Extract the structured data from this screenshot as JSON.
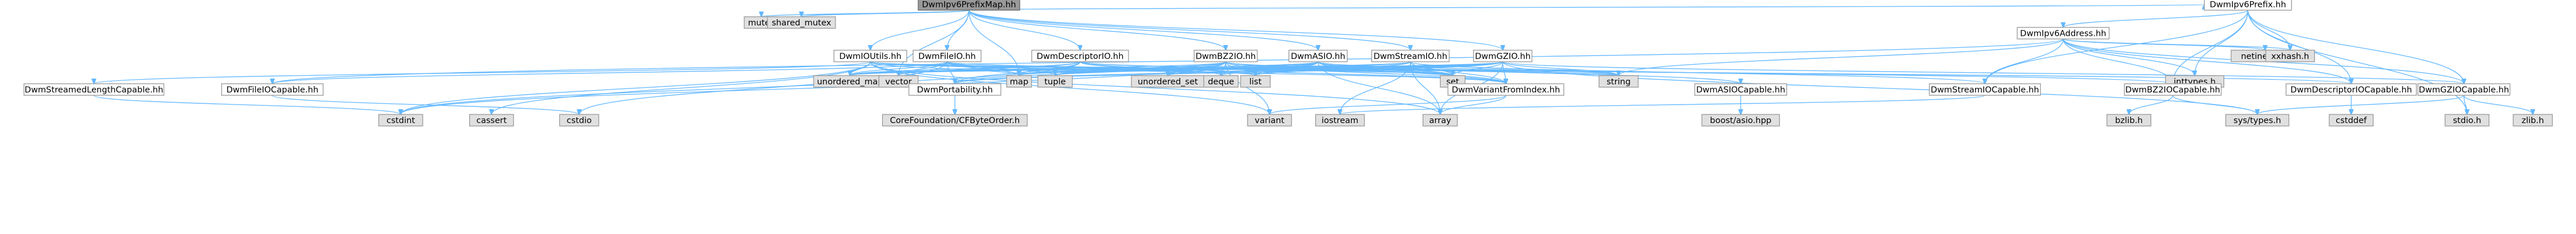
{
  "diagram": {
    "type": "include-dependency-graph",
    "colors": {
      "root_fill": "#999999",
      "local_fill": "#ffffff",
      "system_fill": "#e0e0e0",
      "border": "#999999",
      "edge": "#63b8ff"
    },
    "nodes": [
      {
        "id": "root",
        "label": "DwmIpv6PrefixMap.hh",
        "kind": "root"
      },
      {
        "id": "mutex",
        "label": "mutex",
        "kind": "system"
      },
      {
        "id": "shared_mutex",
        "label": "shared_mutex",
        "kind": "system"
      },
      {
        "id": "ipv6prefix",
        "label": "DwmIpv6Prefix.hh",
        "kind": "local"
      },
      {
        "id": "ipv6address",
        "label": "DwmIpv6Address.hh",
        "kind": "local"
      },
      {
        "id": "netinet",
        "label": "netinet/in.h",
        "kind": "system"
      },
      {
        "id": "xxhash",
        "label": "xxhash.h",
        "kind": "system"
      },
      {
        "id": "ioutils",
        "label": "DwmIOUtils.hh",
        "kind": "local"
      },
      {
        "id": "fileio",
        "label": "DwmFileIO.hh",
        "kind": "local"
      },
      {
        "id": "descriptorio",
        "label": "DwmDescriptorIO.hh",
        "kind": "local"
      },
      {
        "id": "bzio",
        "label": "DwmBZ2IO.hh",
        "kind": "local"
      },
      {
        "id": "asio",
        "label": "DwmASIO.hh",
        "kind": "local"
      },
      {
        "id": "streamio",
        "label": "DwmStreamIO.hh",
        "kind": "local"
      },
      {
        "id": "gzio",
        "label": "DwmGZIO.hh",
        "kind": "local"
      },
      {
        "id": "streamedlen",
        "label": "DwmStreamedLengthCapable.hh",
        "kind": "local"
      },
      {
        "id": "fileiocap",
        "label": "DwmFileIOCapable.hh",
        "kind": "local"
      },
      {
        "id": "unordered_map",
        "label": "unordered_map",
        "kind": "system"
      },
      {
        "id": "vector",
        "label": "vector",
        "kind": "system"
      },
      {
        "id": "portability",
        "label": "DwmPortability.hh",
        "kind": "local"
      },
      {
        "id": "map",
        "label": "map",
        "kind": "system"
      },
      {
        "id": "tuple",
        "label": "tuple",
        "kind": "system"
      },
      {
        "id": "unordered_set",
        "label": "unordered_set",
        "kind": "system"
      },
      {
        "id": "deque",
        "label": "deque",
        "kind": "system"
      },
      {
        "id": "list",
        "label": "list",
        "kind": "system"
      },
      {
        "id": "set",
        "label": "set",
        "kind": "system"
      },
      {
        "id": "variantfromindex",
        "label": "DwmVariantFromIndex.hh",
        "kind": "local"
      },
      {
        "id": "string",
        "label": "string",
        "kind": "system"
      },
      {
        "id": "asiocap",
        "label": "DwmASIOCapable.hh",
        "kind": "local"
      },
      {
        "id": "streamiocap",
        "label": "DwmStreamIOCapable.hh",
        "kind": "local"
      },
      {
        "id": "inttypes",
        "label": "inttypes.h",
        "kind": "system"
      },
      {
        "id": "bz2iocap",
        "label": "DwmBZ2IOCapable.hh",
        "kind": "local"
      },
      {
        "id": "descriptoriocap",
        "label": "DwmDescriptorIOCapable.hh",
        "kind": "local"
      },
      {
        "id": "gziocap",
        "label": "DwmGZIOCapable.hh",
        "kind": "local"
      },
      {
        "id": "cstdint",
        "label": "cstdint",
        "kind": "system"
      },
      {
        "id": "cassert",
        "label": "cassert",
        "kind": "system"
      },
      {
        "id": "cstdio",
        "label": "cstdio",
        "kind": "system"
      },
      {
        "id": "cfbyteorder",
        "label": "CoreFoundation/CFByteOrder.h",
        "kind": "system"
      },
      {
        "id": "variant",
        "label": "variant",
        "kind": "system"
      },
      {
        "id": "iostream",
        "label": "iostream",
        "kind": "system"
      },
      {
        "id": "array",
        "label": "array",
        "kind": "system"
      },
      {
        "id": "boostasio",
        "label": "boost/asio.hpp",
        "kind": "system"
      },
      {
        "id": "bzlib",
        "label": "bzlib.h",
        "kind": "system"
      },
      {
        "id": "systypes",
        "label": "sys/types.h",
        "kind": "system"
      },
      {
        "id": "cstddef",
        "label": "cstddef",
        "kind": "system"
      },
      {
        "id": "stdioh",
        "label": "stdio.h",
        "kind": "system"
      },
      {
        "id": "zlib",
        "label": "zlib.h",
        "kind": "system"
      }
    ],
    "edges": [
      [
        "root",
        "mutex"
      ],
      [
        "root",
        "shared_mutex"
      ],
      [
        "root",
        "ipv6prefix"
      ],
      [
        "root",
        "ioutils"
      ],
      [
        "root",
        "fileio"
      ],
      [
        "root",
        "descriptorio"
      ],
      [
        "root",
        "bzio"
      ],
      [
        "root",
        "asio"
      ],
      [
        "root",
        "streamio"
      ],
      [
        "root",
        "gzio"
      ],
      [
        "root",
        "map"
      ],
      [
        "root",
        "vector"
      ],
      [
        "ipv6prefix",
        "ipv6address"
      ],
      [
        "ipv6prefix",
        "xxhash"
      ],
      [
        "ipv6prefix",
        "inttypes"
      ],
      [
        "ipv6prefix",
        "streamiocap"
      ],
      [
        "ipv6prefix",
        "descriptoriocap"
      ],
      [
        "ipv6prefix",
        "gziocap"
      ],
      [
        "ipv6prefix",
        "bz2iocap"
      ],
      [
        "ipv6prefix",
        "stdioh"
      ],
      [
        "ipv6address",
        "netinet"
      ],
      [
        "ipv6address",
        "xxhash"
      ],
      [
        "ipv6address",
        "inttypes"
      ],
      [
        "ipv6address",
        "streamiocap"
      ],
      [
        "ipv6address",
        "descriptoriocap"
      ],
      [
        "ipv6address",
        "gziocap"
      ],
      [
        "ipv6address",
        "bz2iocap"
      ],
      [
        "ipv6address",
        "string"
      ],
      [
        "ipv6address",
        "fileiocap"
      ],
      [
        "ioutils",
        "streamedlen"
      ],
      [
        "ioutils",
        "cstdint"
      ],
      [
        "ioutils",
        "cassert"
      ],
      [
        "ioutils",
        "unordered_map"
      ],
      [
        "ioutils",
        "vector"
      ],
      [
        "ioutils",
        "map"
      ],
      [
        "ioutils",
        "set"
      ],
      [
        "ioutils",
        "list"
      ],
      [
        "ioutils",
        "string"
      ],
      [
        "ioutils",
        "variant"
      ],
      [
        "ioutils",
        "array"
      ],
      [
        "fileio",
        "fileiocap"
      ],
      [
        "fileio",
        "cstdio"
      ],
      [
        "fileio",
        "portability"
      ],
      [
        "fileio",
        "unordered_map"
      ],
      [
        "fileio",
        "map"
      ],
      [
        "fileio",
        "vector"
      ],
      [
        "fileio",
        "tuple"
      ],
      [
        "fileio",
        "set"
      ],
      [
        "fileio",
        "variantfromindex"
      ],
      [
        "descriptorio",
        "descriptoriocap"
      ],
      [
        "descriptorio",
        "portability"
      ],
      [
        "descriptorio",
        "vector"
      ],
      [
        "descriptorio",
        "unordered_map"
      ],
      [
        "descriptorio",
        "map"
      ],
      [
        "descriptorio",
        "deque"
      ],
      [
        "descriptorio",
        "list"
      ],
      [
        "descriptorio",
        "set"
      ],
      [
        "descriptorio",
        "variantfromindex"
      ],
      [
        "descriptorio",
        "cstdint"
      ],
      [
        "bzio",
        "bz2iocap"
      ],
      [
        "bzio",
        "portability"
      ],
      [
        "bzio",
        "unordered_map"
      ],
      [
        "bzio",
        "map"
      ],
      [
        "bzio",
        "tuple"
      ],
      [
        "bzio",
        "unordered_set"
      ],
      [
        "bzio",
        "deque"
      ],
      [
        "bzio",
        "list"
      ],
      [
        "bzio",
        "set"
      ],
      [
        "bzio",
        "variantfromindex"
      ],
      [
        "bzio",
        "cstdint"
      ],
      [
        "bzio",
        "variant"
      ],
      [
        "asio",
        "asiocap"
      ],
      [
        "asio",
        "unordered_map"
      ],
      [
        "asio",
        "map"
      ],
      [
        "asio",
        "tuple"
      ],
      [
        "asio",
        "unordered_set"
      ],
      [
        "asio",
        "deque"
      ],
      [
        "asio",
        "list"
      ],
      [
        "asio",
        "set"
      ],
      [
        "asio",
        "string"
      ],
      [
        "asio",
        "variantfromindex"
      ],
      [
        "asio",
        "array"
      ],
      [
        "streamio",
        "streamiocap"
      ],
      [
        "streamio",
        "portability"
      ],
      [
        "streamio",
        "iostream"
      ],
      [
        "streamio",
        "unordered_map"
      ],
      [
        "streamio",
        "map"
      ],
      [
        "streamio",
        "tuple"
      ],
      [
        "streamio",
        "list"
      ],
      [
        "streamio",
        "set"
      ],
      [
        "streamio",
        "string"
      ],
      [
        "streamio",
        "variantfromindex"
      ],
      [
        "streamio",
        "array"
      ],
      [
        "gzio",
        "gziocap"
      ],
      [
        "gzio",
        "portability"
      ],
      [
        "gzio",
        "unordered_map"
      ],
      [
        "gzio",
        "map"
      ],
      [
        "gzio",
        "tuple"
      ],
      [
        "gzio",
        "unordered_set"
      ],
      [
        "gzio",
        "deque"
      ],
      [
        "gzio",
        "list"
      ],
      [
        "gzio",
        "set"
      ],
      [
        "gzio",
        "string"
      ],
      [
        "gzio",
        "variantfromindex"
      ],
      [
        "gzio",
        "systypes"
      ],
      [
        "gzio",
        "array"
      ],
      [
        "streamedlen",
        "cstdint"
      ],
      [
        "fileiocap",
        "cstdio"
      ],
      [
        "portability",
        "cfbyteorder"
      ],
      [
        "variantfromindex",
        "variant"
      ],
      [
        "variantfromindex",
        "array"
      ],
      [
        "asiocap",
        "boostasio"
      ],
      [
        "streamiocap",
        "iostream"
      ],
      [
        "bz2iocap",
        "bzlib"
      ],
      [
        "bz2iocap",
        "systypes"
      ],
      [
        "descriptoriocap",
        "cstddef"
      ],
      [
        "gziocap",
        "systypes"
      ],
      [
        "gziocap",
        "zlib"
      ],
      [
        "gziocap",
        "stdioh"
      ]
    ]
  }
}
